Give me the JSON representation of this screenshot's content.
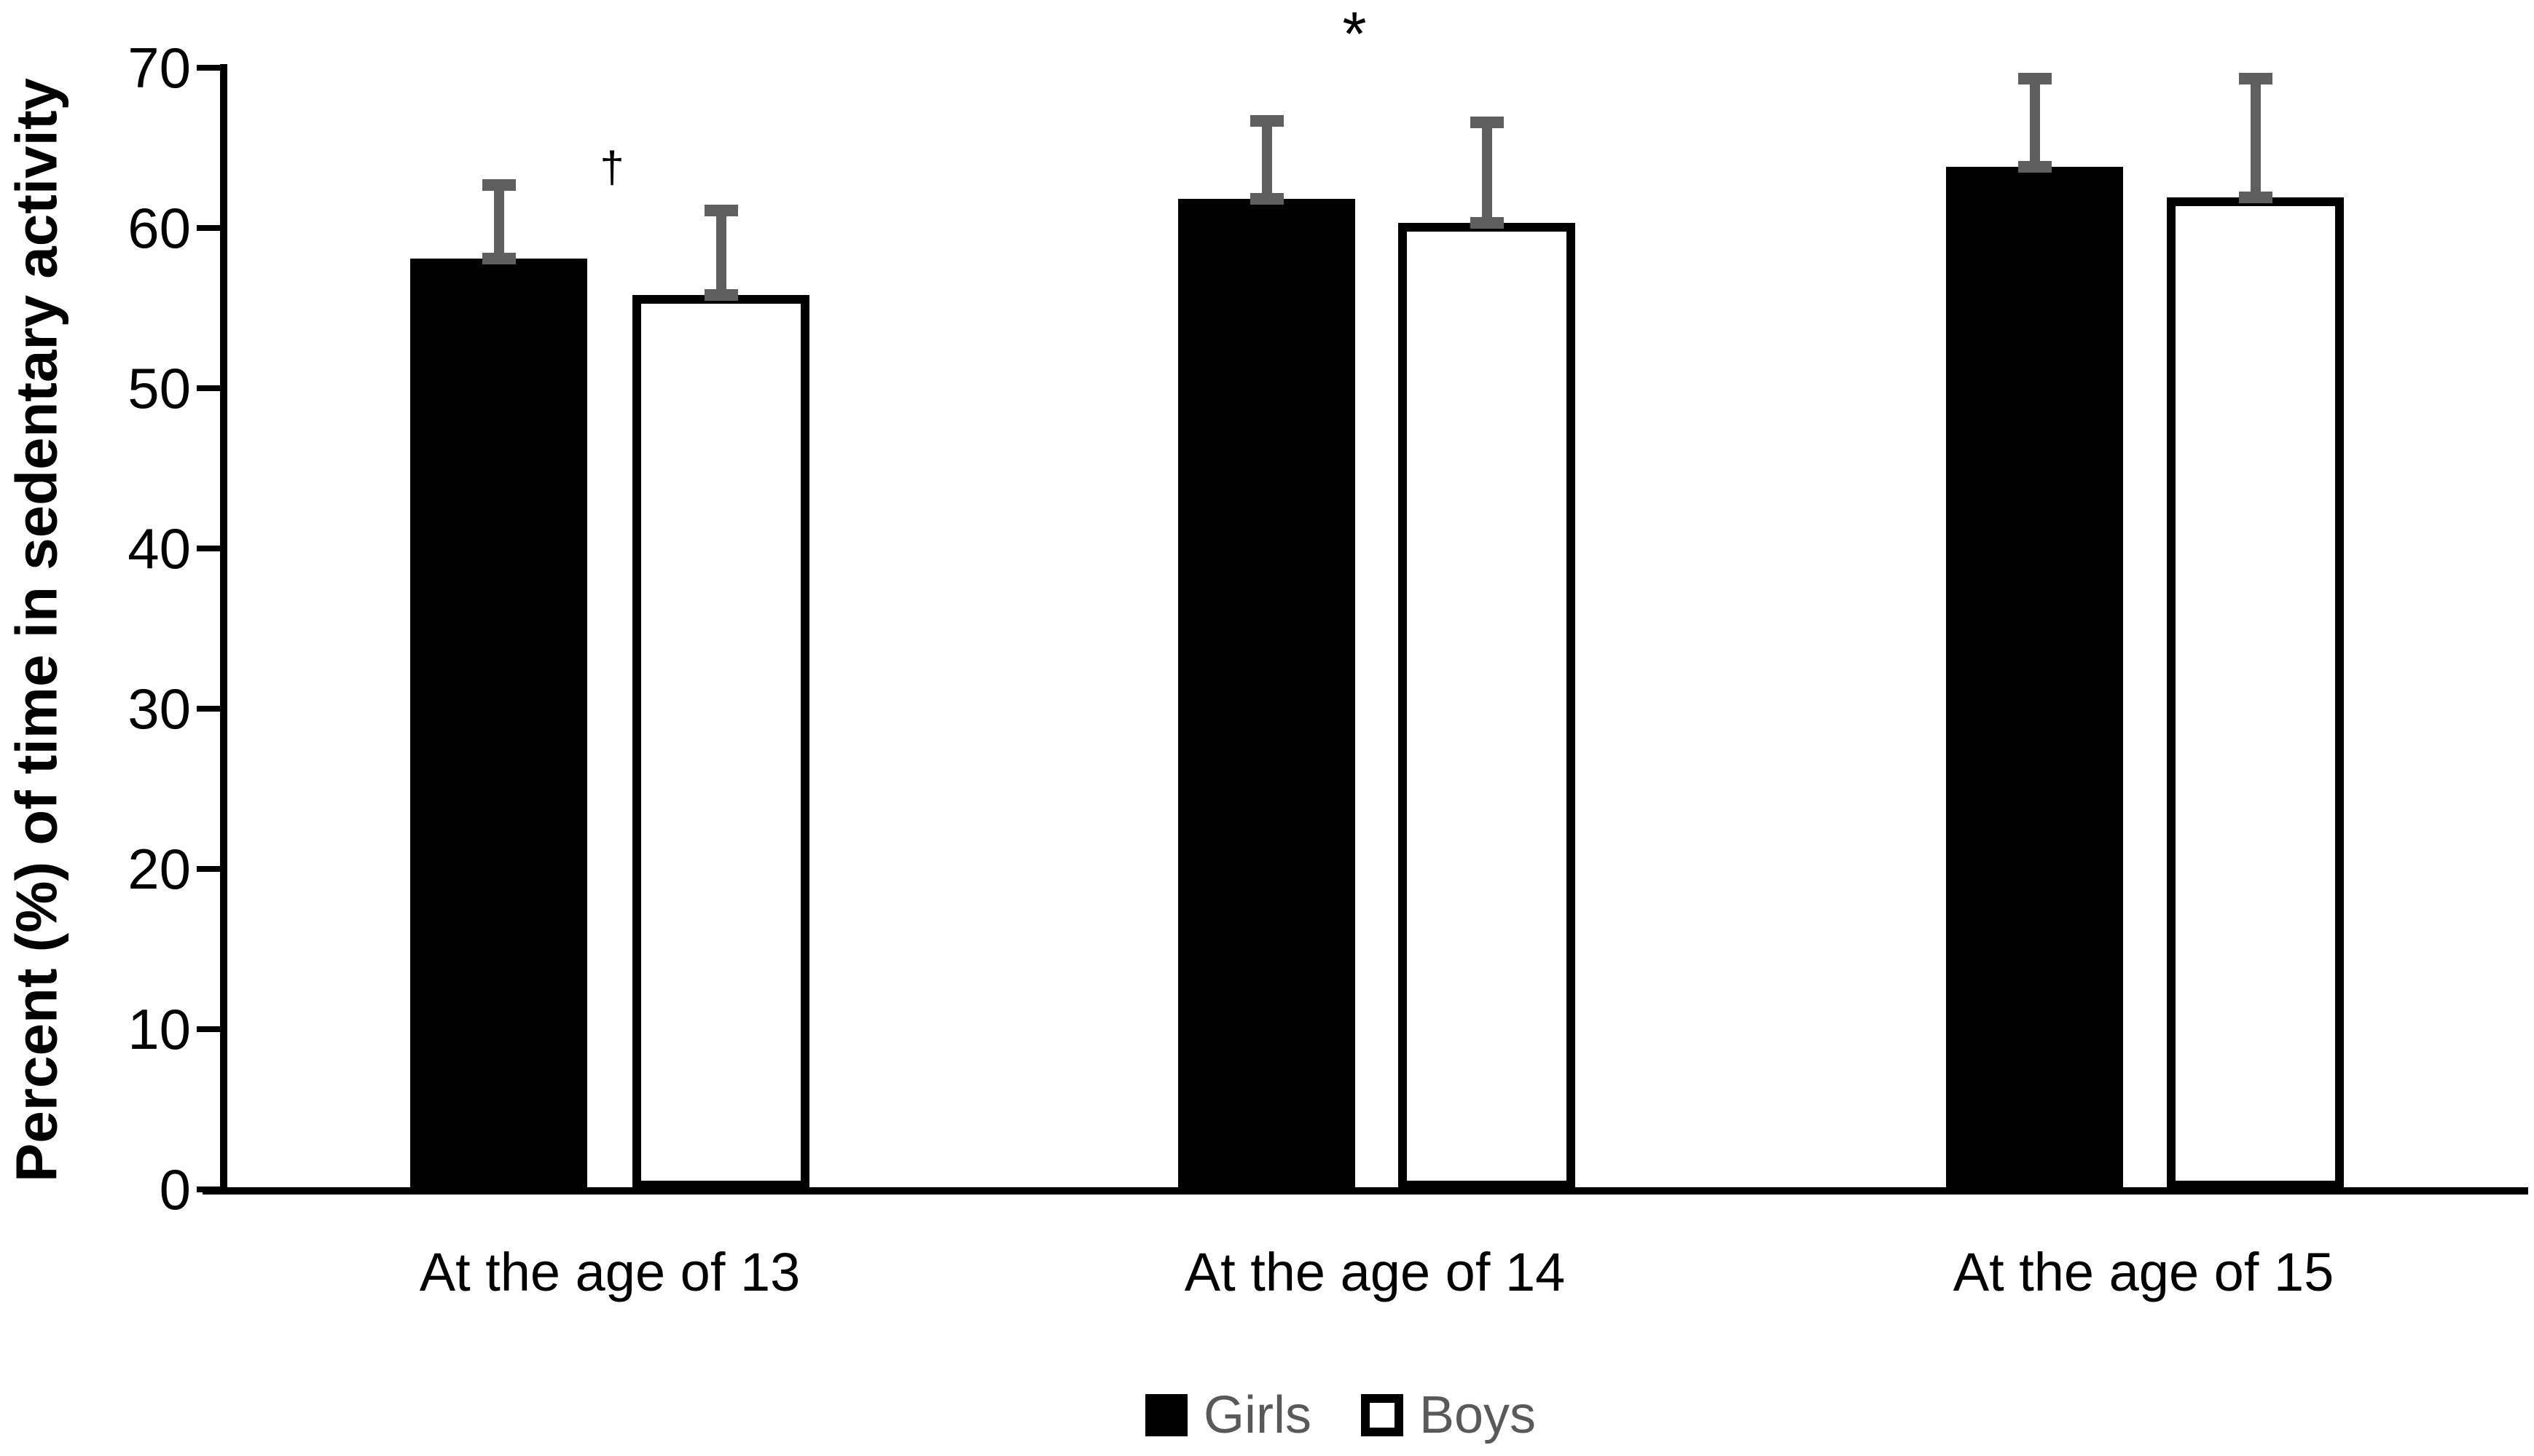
{
  "figure": {
    "background": "#ffffff"
  },
  "chart_data": {
    "type": "bar",
    "title": "",
    "xlabel": "",
    "ylabel": "Percent (%) of time in sedentary activity",
    "categories": [
      "At the age of 13",
      "At the age of 14",
      "At the age of 15"
    ],
    "series": [
      {
        "name": "Girls",
        "fill": "#000000",
        "values": [
          58.1,
          61.8,
          63.8
        ],
        "error_upper": [
          4.6,
          4.9,
          5.5
        ]
      },
      {
        "name": "Boys",
        "fill": "#ffffff",
        "border": "#000000",
        "values": [
          55.8,
          60.3,
          61.9
        ],
        "error_upper": [
          5.3,
          6.3,
          7.4
        ]
      }
    ],
    "ylim": [
      0,
      70
    ],
    "yticks": [
      "0",
      "10",
      "20",
      "30",
      "40",
      "50",
      "60",
      "70"
    ],
    "grid": false,
    "legend_position": "bottom",
    "error_bar_color": "#5f5f5f",
    "annotations": [
      {
        "symbol": "†",
        "category_index": 0
      },
      {
        "symbol": "*",
        "category_index": 1
      }
    ]
  }
}
